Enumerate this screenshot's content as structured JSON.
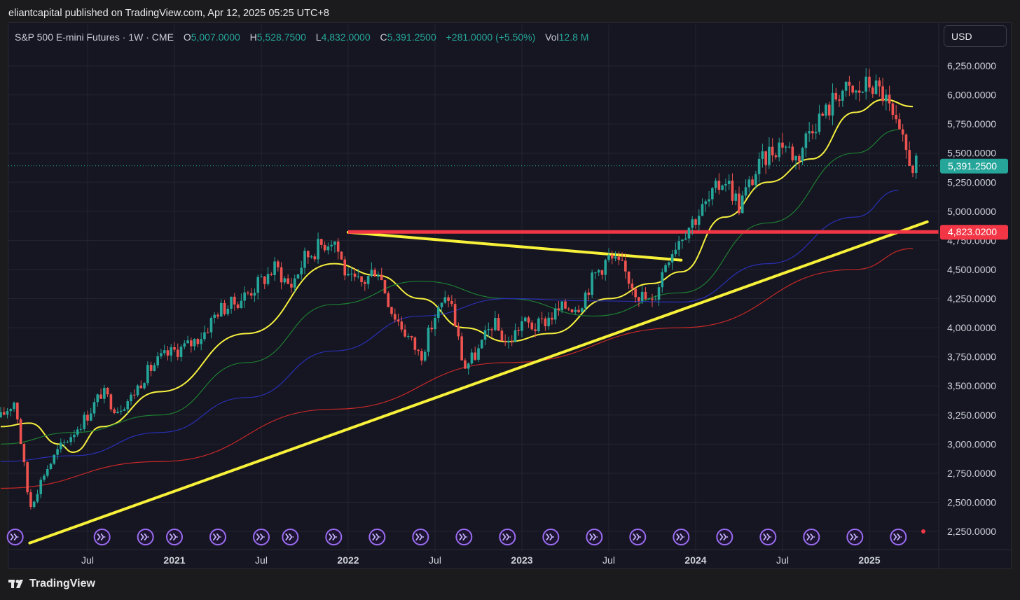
{
  "publisher_line": "eliantcapital published on TradingView.com, Apr 12, 2025 05:25 UTC+8",
  "header": {
    "symbol": "S&P 500 E-mini Futures · 1W · CME",
    "o_label": "O",
    "o": "5,007.0000",
    "h_label": "H",
    "h": "5,528.7500",
    "l_label": "L",
    "l": "4,832.0000",
    "c_label": "C",
    "c": "5,391.2500",
    "change": "+281.0000 (+5.50%)",
    "vol_label": "Vol",
    "vol": "12.8 M"
  },
  "currency_button": "USD",
  "footer_brand": "TradingView",
  "colors": {
    "up": "#26a69a",
    "down": "#ef5350",
    "ma_yellow": "#f6ef3f",
    "ma_green": "#1e7d32",
    "ma_blue": "#2a2fb5",
    "ma_red": "#c62828",
    "trendline": "#f8f13a",
    "support": "#f23645",
    "last_price_bg": "#26a69a"
  },
  "chart_data": {
    "type": "candlestick",
    "timeframe": "1W",
    "x_range": [
      "2020-01",
      "2025-05"
    ],
    "y_range": [
      2150,
      6350
    ],
    "y_ticks": [
      {
        "value": 6250,
        "label": "6,250.0000"
      },
      {
        "value": 6000,
        "label": "6,000.0000"
      },
      {
        "value": 5750,
        "label": "5,750.0000"
      },
      {
        "value": 5500,
        "label": "5,500.0000"
      },
      {
        "value": 5250,
        "label": "5,250.0000"
      },
      {
        "value": 5000,
        "label": "5,000.0000"
      },
      {
        "value": 4750,
        "label": "4,750.0000"
      },
      {
        "value": 4500,
        "label": "4,500.0000"
      },
      {
        "value": 4250,
        "label": "4,250.0000"
      },
      {
        "value": 4000,
        "label": "4,000.0000"
      },
      {
        "value": 3750,
        "label": "3,750.0000"
      },
      {
        "value": 3500,
        "label": "3,500.0000"
      },
      {
        "value": 3250,
        "label": "3,250.0000"
      },
      {
        "value": 3000,
        "label": "3,000.0000"
      },
      {
        "value": 2750,
        "label": "2,750.0000"
      },
      {
        "value": 2500,
        "label": "2,500.0000"
      },
      {
        "value": 2250,
        "label": "2,250.0000"
      }
    ],
    "x_ticks": [
      {
        "date": "2020-07",
        "label": "Jul",
        "bold": false
      },
      {
        "date": "2021-01",
        "label": "2021",
        "bold": true
      },
      {
        "date": "2021-07",
        "label": "Jul",
        "bold": false
      },
      {
        "date": "2022-01",
        "label": "2022",
        "bold": true
      },
      {
        "date": "2022-07",
        "label": "Jul",
        "bold": false
      },
      {
        "date": "2023-01",
        "label": "2023",
        "bold": true
      },
      {
        "date": "2023-07",
        "label": "Jul",
        "bold": false
      },
      {
        "date": "2024-01",
        "label": "2024",
        "bold": true
      },
      {
        "date": "2024-07",
        "label": "Jul",
        "bold": false
      },
      {
        "date": "2025-01",
        "label": "2025",
        "bold": true
      }
    ],
    "price_path": [
      [
        "2020-01",
        3230
      ],
      [
        "2020-02",
        3380
      ],
      [
        "2020-03",
        2450
      ],
      [
        "2020-04",
        2750
      ],
      [
        "2020-05",
        2950
      ],
      [
        "2020-06",
        3100
      ],
      [
        "2020-07",
        3250
      ],
      [
        "2020-08",
        3450
      ],
      [
        "2020-09",
        3300
      ],
      [
        "2020-10",
        3400
      ],
      [
        "2020-11",
        3600
      ],
      [
        "2020-12",
        3730
      ],
      [
        "2021-01",
        3800
      ],
      [
        "2021-02",
        3850
      ],
      [
        "2021-03",
        3950
      ],
      [
        "2021-04",
        4150
      ],
      [
        "2021-05",
        4200
      ],
      [
        "2021-06",
        4290
      ],
      [
        "2021-07",
        4400
      ],
      [
        "2021-08",
        4520
      ],
      [
        "2021-09",
        4350
      ],
      [
        "2021-10",
        4600
      ],
      [
        "2021-11",
        4700
      ],
      [
        "2021-12",
        4780
      ],
      [
        "2022-01",
        4400
      ],
      [
        "2022-02",
        4380
      ],
      [
        "2022-03",
        4530
      ],
      [
        "2022-04",
        4150
      ],
      [
        "2022-05",
        3950
      ],
      [
        "2022-06",
        3750
      ],
      [
        "2022-07",
        4100
      ],
      [
        "2022-08",
        4280
      ],
      [
        "2022-09",
        3650
      ],
      [
        "2022-10",
        3800
      ],
      [
        "2022-11",
        4050
      ],
      [
        "2022-12",
        3850
      ],
      [
        "2023-01",
        4050
      ],
      [
        "2023-02",
        4000
      ],
      [
        "2023-03",
        4100
      ],
      [
        "2023-04",
        4180
      ],
      [
        "2023-05",
        4200
      ],
      [
        "2023-06",
        4450
      ],
      [
        "2023-07",
        4600
      ],
      [
        "2023-08",
        4500
      ],
      [
        "2023-09",
        4300
      ],
      [
        "2023-10",
        4200
      ],
      [
        "2023-11",
        4600
      ],
      [
        "2023-12",
        4800
      ],
      [
        "2024-01",
        4950
      ],
      [
        "2024-02",
        5100
      ],
      [
        "2024-03",
        5300
      ],
      [
        "2024-04",
        5050
      ],
      [
        "2024-05",
        5300
      ],
      [
        "2024-06",
        5500
      ],
      [
        "2024-07",
        5600
      ],
      [
        "2024-08",
        5450
      ],
      [
        "2024-09",
        5750
      ],
      [
        "2024-10",
        5850
      ],
      [
        "2024-11",
        6050
      ],
      [
        "2024-12",
        6000
      ],
      [
        "2025-01",
        6100
      ],
      [
        "2025-02",
        6000
      ],
      [
        "2025-03",
        5650
      ],
      [
        "2025-04",
        5391.25
      ]
    ],
    "moving_averages": [
      {
        "color": "#f6ef3f",
        "points": [
          [
            "2020-01",
            3150
          ],
          [
            "2020-03",
            3180
          ],
          [
            "2020-05",
            3000
          ],
          [
            "2020-06",
            2930
          ],
          [
            "2020-08",
            3150
          ],
          [
            "2020-12",
            3450
          ],
          [
            "2021-06",
            3950
          ],
          [
            "2021-12",
            4550
          ],
          [
            "2022-03",
            4450
          ],
          [
            "2022-06",
            4250
          ],
          [
            "2022-09",
            4000
          ],
          [
            "2022-12",
            3880
          ],
          [
            "2023-03",
            3950
          ],
          [
            "2023-07",
            4250
          ],
          [
            "2023-10",
            4380
          ],
          [
            "2023-12",
            4480
          ],
          [
            "2024-03",
            4950
          ],
          [
            "2024-06",
            5250
          ],
          [
            "2024-09",
            5450
          ],
          [
            "2024-12",
            5850
          ],
          [
            "2025-02",
            5960
          ],
          [
            "2025-04",
            5900
          ]
        ]
      },
      {
        "color": "#1e7d32",
        "points": [
          [
            "2020-01",
            3000
          ],
          [
            "2020-06",
            3100
          ],
          [
            "2020-12",
            3250
          ],
          [
            "2021-06",
            3700
          ],
          [
            "2021-12",
            4200
          ],
          [
            "2022-06",
            4400
          ],
          [
            "2022-12",
            4250
          ],
          [
            "2023-06",
            4100
          ],
          [
            "2023-12",
            4300
          ],
          [
            "2024-06",
            4900
          ],
          [
            "2024-12",
            5500
          ],
          [
            "2025-03",
            5700
          ]
        ]
      },
      {
        "color": "#2a2fb5",
        "points": [
          [
            "2020-01",
            2850
          ],
          [
            "2020-06",
            2900
          ],
          [
            "2020-12",
            3100
          ],
          [
            "2021-06",
            3400
          ],
          [
            "2021-12",
            3800
          ],
          [
            "2022-06",
            4100
          ],
          [
            "2022-12",
            4250
          ],
          [
            "2023-06",
            4230
          ],
          [
            "2023-12",
            4220
          ],
          [
            "2024-06",
            4550
          ],
          [
            "2024-12",
            4950
          ],
          [
            "2025-03",
            5180
          ]
        ]
      },
      {
        "color": "#c62828",
        "points": [
          [
            "2020-01",
            2620
          ],
          [
            "2020-12",
            2850
          ],
          [
            "2021-12",
            3300
          ],
          [
            "2022-12",
            3700
          ],
          [
            "2023-12",
            4000
          ],
          [
            "2024-12",
            4500
          ],
          [
            "2025-04",
            4680
          ]
        ]
      }
    ],
    "drawings": {
      "uptrend": [
        [
          "2020-03",
          2150
        ],
        [
          "2025-05",
          4910
        ]
      ],
      "downtrend": [
        [
          "2022-01",
          4820
        ],
        [
          "2023-12",
          4580
        ]
      ],
      "support_level": 4823.02
    },
    "last_price": {
      "value": 5391.25,
      "label": "5,391.2500"
    },
    "support_label": "4,823.0200",
    "event_markers": [
      "2020-02",
      "2020-08",
      "2020-11",
      "2021-01",
      "2021-04",
      "2021-07",
      "2021-09",
      "2021-12",
      "2022-03",
      "2022-06",
      "2022-09",
      "2022-12",
      "2023-03",
      "2023-06",
      "2023-09",
      "2023-12",
      "2024-03",
      "2024-06",
      "2024-09",
      "2024-12",
      "2025-03"
    ]
  }
}
